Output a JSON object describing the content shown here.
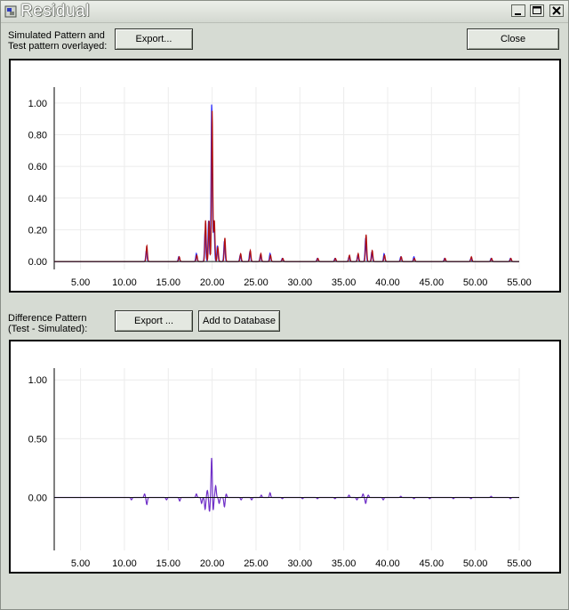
{
  "window": {
    "title": "Residual",
    "controls": [
      "minimize",
      "maximize",
      "close"
    ]
  },
  "top_section": {
    "label_line1": "Simulated Pattern and",
    "label_line2": "Test pattern overlayed:",
    "export_button": "Export...",
    "close_button": "Close"
  },
  "bottom_section": {
    "label_line1": "Difference Pattern",
    "label_line2": "(Test - Simulated):",
    "export_button": "Export ...",
    "add_button": "Add to Database"
  },
  "chart_data": [
    {
      "type": "line",
      "xlim": [
        2,
        55
      ],
      "ylim": [
        -0.05,
        1.1
      ],
      "x_ticks": [
        "5.00",
        "10.00",
        "15.00",
        "20.00",
        "25.00",
        "30.00",
        "35.00",
        "40.00",
        "45.00",
        "50.00",
        "55.00"
      ],
      "x_tick_values": [
        5,
        10,
        15,
        20,
        25,
        30,
        35,
        40,
        45,
        50,
        55
      ],
      "y_ticks": [
        "1.00",
        "0.80",
        "0.60",
        "0.40",
        "0.20",
        "0.00"
      ],
      "y_tick_values": [
        1.0,
        0.8,
        0.6,
        0.4,
        0.2,
        0.0
      ],
      "grid": true,
      "series": [
        {
          "color": "#2a2aff",
          "peaks": [
            [
              12.5,
              0.07
            ],
            [
              16.2,
              0.03
            ],
            [
              18.2,
              0.05
            ],
            [
              19.2,
              0.2
            ],
            [
              19.6,
              0.26
            ],
            [
              19.95,
              1.0
            ],
            [
              20.2,
              0.25
            ],
            [
              20.6,
              0.1
            ],
            [
              21.4,
              0.13
            ],
            [
              23.2,
              0.04
            ],
            [
              24.3,
              0.06
            ],
            [
              25.5,
              0.04
            ],
            [
              26.6,
              0.05
            ],
            [
              28.0,
              0.02
            ],
            [
              32.0,
              0.02
            ],
            [
              34.0,
              0.02
            ],
            [
              35.6,
              0.03
            ],
            [
              36.6,
              0.04
            ],
            [
              37.5,
              0.15
            ],
            [
              38.2,
              0.06
            ],
            [
              39.6,
              0.05
            ],
            [
              41.5,
              0.03
            ],
            [
              43.0,
              0.03
            ],
            [
              46.5,
              0.02
            ],
            [
              49.5,
              0.02
            ],
            [
              51.8,
              0.02
            ],
            [
              54.0,
              0.02
            ]
          ]
        },
        {
          "color": "#b01010",
          "peaks": [
            [
              12.55,
              0.1
            ],
            [
              16.25,
              0.03
            ],
            [
              18.25,
              0.04
            ],
            [
              19.25,
              0.26
            ],
            [
              19.65,
              0.26
            ],
            [
              20.0,
              0.95
            ],
            [
              20.25,
              0.26
            ],
            [
              20.65,
              0.09
            ],
            [
              21.45,
              0.15
            ],
            [
              23.25,
              0.05
            ],
            [
              24.35,
              0.07
            ],
            [
              25.55,
              0.05
            ],
            [
              26.65,
              0.04
            ],
            [
              28.05,
              0.02
            ],
            [
              32.05,
              0.02
            ],
            [
              34.05,
              0.02
            ],
            [
              35.65,
              0.04
            ],
            [
              36.65,
              0.05
            ],
            [
              37.55,
              0.17
            ],
            [
              38.25,
              0.07
            ],
            [
              39.65,
              0.04
            ],
            [
              41.55,
              0.03
            ],
            [
              43.05,
              0.02
            ],
            [
              46.55,
              0.02
            ],
            [
              49.55,
              0.03
            ],
            [
              51.85,
              0.02
            ],
            [
              54.05,
              0.02
            ]
          ]
        }
      ]
    },
    {
      "type": "line",
      "xlim": [
        2,
        55
      ],
      "ylim": [
        -0.45,
        1.1
      ],
      "x_ticks": [
        "5.00",
        "10.00",
        "15.00",
        "20.00",
        "25.00",
        "30.00",
        "35.00",
        "40.00",
        "45.00",
        "50.00",
        "55.00"
      ],
      "x_tick_values": [
        5,
        10,
        15,
        20,
        25,
        30,
        35,
        40,
        45,
        50,
        55
      ],
      "y_ticks": [
        "1.00",
        "0.50",
        "0.00"
      ],
      "y_tick_values": [
        1.0,
        0.5,
        0.0
      ],
      "grid": true,
      "series": [
        {
          "color": "#7030c8",
          "peaks": [
            [
              10.8,
              -0.02
            ],
            [
              12.3,
              0.03
            ],
            [
              12.55,
              -0.06
            ],
            [
              14.8,
              -0.02
            ],
            [
              16.3,
              -0.03
            ],
            [
              18.2,
              0.03
            ],
            [
              18.8,
              -0.05
            ],
            [
              19.2,
              -0.1
            ],
            [
              19.45,
              0.06
            ],
            [
              19.7,
              -0.12
            ],
            [
              19.95,
              0.35
            ],
            [
              20.1,
              -0.13
            ],
            [
              20.4,
              0.1
            ],
            [
              20.8,
              -0.05
            ],
            [
              21.4,
              -0.08
            ],
            [
              21.6,
              0.03
            ],
            [
              23.3,
              -0.02
            ],
            [
              24.5,
              -0.02
            ],
            [
              25.6,
              0.02
            ],
            [
              26.6,
              0.04
            ],
            [
              28.0,
              -0.01
            ],
            [
              30.3,
              -0.01
            ],
            [
              32.0,
              -0.01
            ],
            [
              34.0,
              -0.01
            ],
            [
              35.6,
              0.02
            ],
            [
              36.5,
              -0.02
            ],
            [
              37.2,
              0.03
            ],
            [
              37.5,
              -0.05
            ],
            [
              37.8,
              0.02
            ],
            [
              39.5,
              -0.02
            ],
            [
              41.5,
              0.01
            ],
            [
              43.0,
              -0.01
            ],
            [
              44.8,
              -0.01
            ],
            [
              47.5,
              -0.01
            ],
            [
              49.5,
              -0.01
            ],
            [
              51.8,
              0.01
            ],
            [
              54.0,
              -0.01
            ]
          ]
        }
      ]
    }
  ]
}
